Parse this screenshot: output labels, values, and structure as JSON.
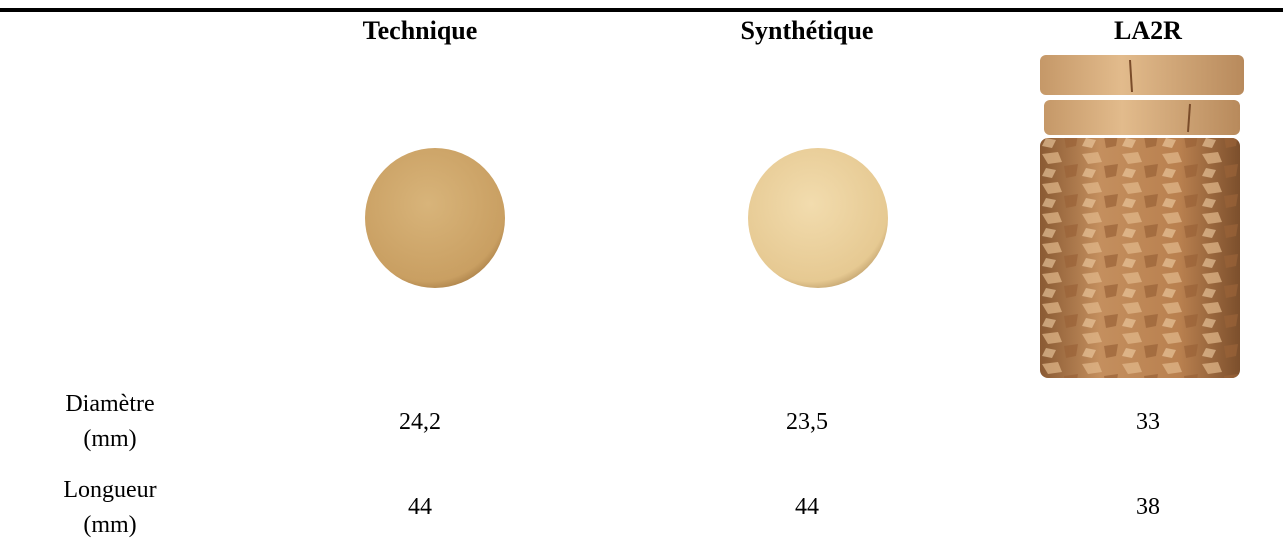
{
  "table": {
    "columns": [
      "Technique",
      "Synthétique",
      "LA2R"
    ],
    "rows": [
      {
        "label": "Diamètre (mm)",
        "values": [
          "24,2",
          "23,5",
          "33"
        ]
      },
      {
        "label": "Longueur (mm)",
        "values": [
          "44",
          "44",
          "38"
        ]
      }
    ]
  }
}
